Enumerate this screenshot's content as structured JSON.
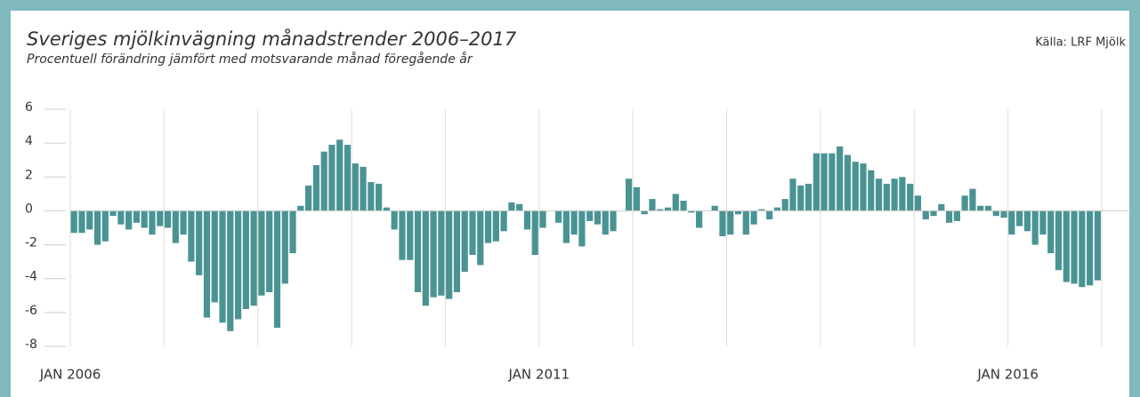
{
  "chart_data": {
    "type": "bar",
    "title": "Sveriges mjölkinvägning månadstrender 2006–2017",
    "subtitle": "Procentuell förändring jämfört med motsvarande månad föregående år",
    "source": "Källa: LRF Mjölk",
    "color": "#4a9393",
    "categories": [
      "JAN 2006",
      null,
      null,
      null,
      null,
      null,
      null,
      null,
      null,
      null,
      null,
      null,
      null,
      null,
      null,
      null,
      null,
      null,
      null,
      null,
      null,
      null,
      null,
      null,
      null,
      null,
      null,
      null,
      null,
      null,
      null,
      null,
      null,
      null,
      null,
      null,
      null,
      null,
      null,
      null,
      null,
      null,
      null,
      null,
      null,
      null,
      null,
      null,
      null,
      null,
      null,
      null,
      null,
      null,
      null,
      null,
      null,
      null,
      null,
      null,
      "JAN 2011",
      null,
      null,
      null,
      null,
      null,
      null,
      null,
      null,
      null,
      null,
      null,
      null,
      null,
      null,
      null,
      null,
      null,
      null,
      null,
      null,
      null,
      null,
      null,
      null,
      null,
      null,
      null,
      null,
      null,
      null,
      null,
      null,
      null,
      null,
      null,
      null,
      null,
      null,
      null,
      null,
      null,
      null,
      null,
      null,
      null,
      null,
      null,
      null,
      null,
      null,
      null,
      null,
      null,
      null,
      null,
      null,
      null,
      null,
      null,
      "JAN 2016",
      null,
      null,
      null,
      null,
      null,
      null,
      null,
      null,
      null,
      null,
      null
    ],
    "values": [
      -1.3,
      -1.3,
      -1.1,
      -2.0,
      -1.8,
      -0.3,
      -0.8,
      -1.1,
      -0.7,
      -1.0,
      -1.4,
      -0.9,
      -1.0,
      -1.9,
      -1.4,
      -3.0,
      -3.8,
      -6.3,
      -5.4,
      -6.6,
      -7.1,
      -6.4,
      -5.8,
      -5.6,
      -5.0,
      -4.8,
      -6.9,
      -4.3,
      -2.5,
      0.3,
      1.5,
      2.7,
      3.5,
      3.9,
      4.2,
      3.9,
      2.8,
      2.6,
      1.7,
      1.6,
      0.2,
      -1.1,
      -2.9,
      -2.9,
      -4.8,
      -5.6,
      -5.1,
      -5.0,
      -5.2,
      -4.8,
      -3.6,
      -2.6,
      -3.2,
      -1.9,
      -1.8,
      -1.2,
      0.5,
      0.4,
      -1.1,
      -2.6,
      -1.0,
      0.0,
      -0.7,
      -1.9,
      -1.4,
      -2.1,
      -0.6,
      -0.8,
      -1.4,
      -1.2,
      0.0,
      1.9,
      1.4,
      -0.2,
      0.7,
      0.1,
      0.2,
      1.0,
      0.6,
      -0.1,
      -1.0,
      0.0,
      0.3,
      -1.5,
      -1.4,
      -0.2,
      -1.4,
      -0.8,
      0.1,
      -0.5,
      0.2,
      0.7,
      1.9,
      1.5,
      1.6,
      3.4,
      3.4,
      3.4,
      3.8,
      3.3,
      2.9,
      2.8,
      2.4,
      1.9,
      1.6,
      1.9,
      2.0,
      1.6,
      0.9,
      -0.5,
      -0.3,
      0.4,
      -0.7,
      -0.6,
      0.9,
      1.3,
      0.3,
      0.3,
      -0.3,
      -0.4,
      -1.4,
      -0.9,
      -1.2,
      -2.0,
      -1.4,
      -2.5,
      -3.5,
      -4.2,
      -4.3,
      -4.5,
      -4.4,
      -4.1
    ],
    "ylim": [
      -8,
      6
    ],
    "yticks": [
      -8,
      -6,
      -4,
      -2,
      0,
      2,
      4,
      6
    ],
    "grid": true
  }
}
